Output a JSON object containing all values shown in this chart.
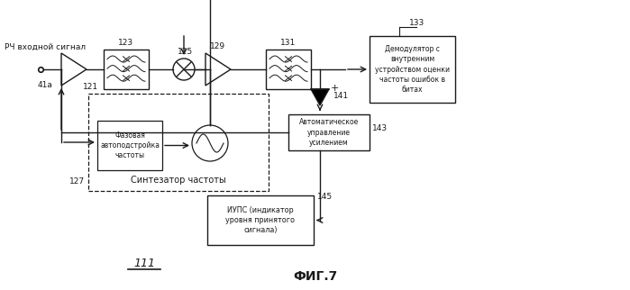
{
  "title": "ФИГ.7",
  "label_rf": "РЧ входной сигнал",
  "label_41a": "41a",
  "label_121": "121",
  "label_123": "123",
  "label_125": "125",
  "label_127": "127",
  "label_129": "129",
  "label_131": "131",
  "label_133": "133",
  "label_141": "141",
  "label_143": "143",
  "label_145": "145",
  "label_111": "111",
  "box_synth": "Синтезатор частоты",
  "box_pll": "Фазовая\nавтоподстройка\nчастоты",
  "box_agc": "Автоматическое\nуправление\nусилением",
  "box_rssi": "ИУПС (индикатор\nуровня принятого\nсигнала)",
  "box_demod": "Демодулятор с\nвнутренним\nустройством оценки\nчастоты ошибок в\nбитах",
  "bg_color": "#ffffff",
  "line_color": "#1a1a1a",
  "text_color": "#1a1a1a"
}
